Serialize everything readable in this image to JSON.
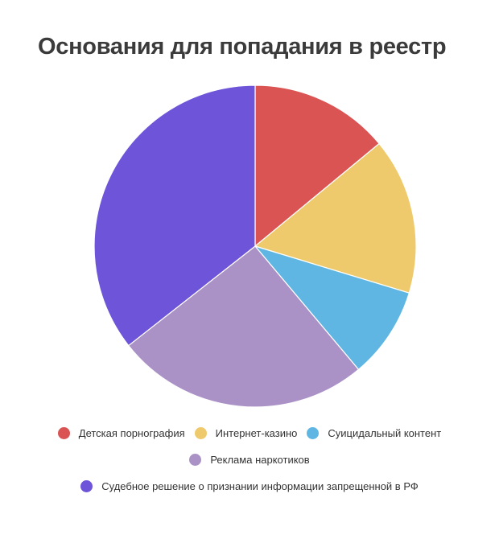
{
  "chart_data": {
    "type": "pie",
    "title": "Основания для попадания в реестр",
    "start_angle_deg": 0,
    "direction": "clockwise",
    "categories": [
      "Детская порнография",
      "Интернет-казино",
      "Суицидальный контент",
      "Реклама наркотиков",
      "Судебное решение о признании информации запрещенной в РФ"
    ],
    "values": [
      14.0,
      15.7,
      9.2,
      25.5,
      35.6
    ],
    "colors": [
      "#db5454",
      "#efca6c",
      "#5fb6e3",
      "#ab92c6",
      "#6e54d8"
    ],
    "legend_position": "bottom",
    "units": "percent (estimated from slice angles)"
  },
  "legend": {
    "rows": [
      [
        0,
        1,
        2
      ],
      [
        3
      ],
      [
        4
      ]
    ]
  }
}
